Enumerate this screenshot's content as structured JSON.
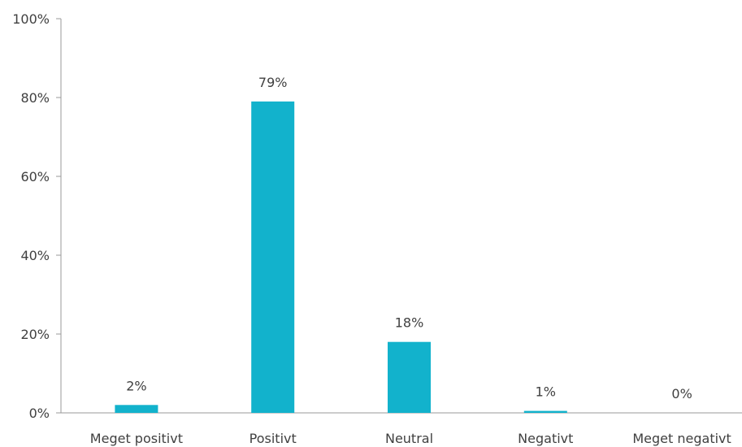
{
  "chart_data": {
    "type": "bar",
    "categories": [
      "Meget positivt",
      "Positivt",
      "Neutral",
      "Negativt",
      "Meget negativt"
    ],
    "values": [
      2,
      79,
      18,
      0.5,
      0
    ],
    "data_labels": [
      "2%",
      "79%",
      "18%",
      "1%",
      "0%"
    ],
    "title": "",
    "xlabel": "",
    "ylabel": "",
    "ylim": [
      0,
      100
    ],
    "yticks": [
      0,
      20,
      40,
      60,
      80,
      100
    ],
    "ytick_labels": [
      "0%",
      "20%",
      "40%",
      "60%",
      "80%",
      "100%"
    ],
    "grid": false,
    "legend": "none",
    "bar_color": "#12B2CC"
  }
}
